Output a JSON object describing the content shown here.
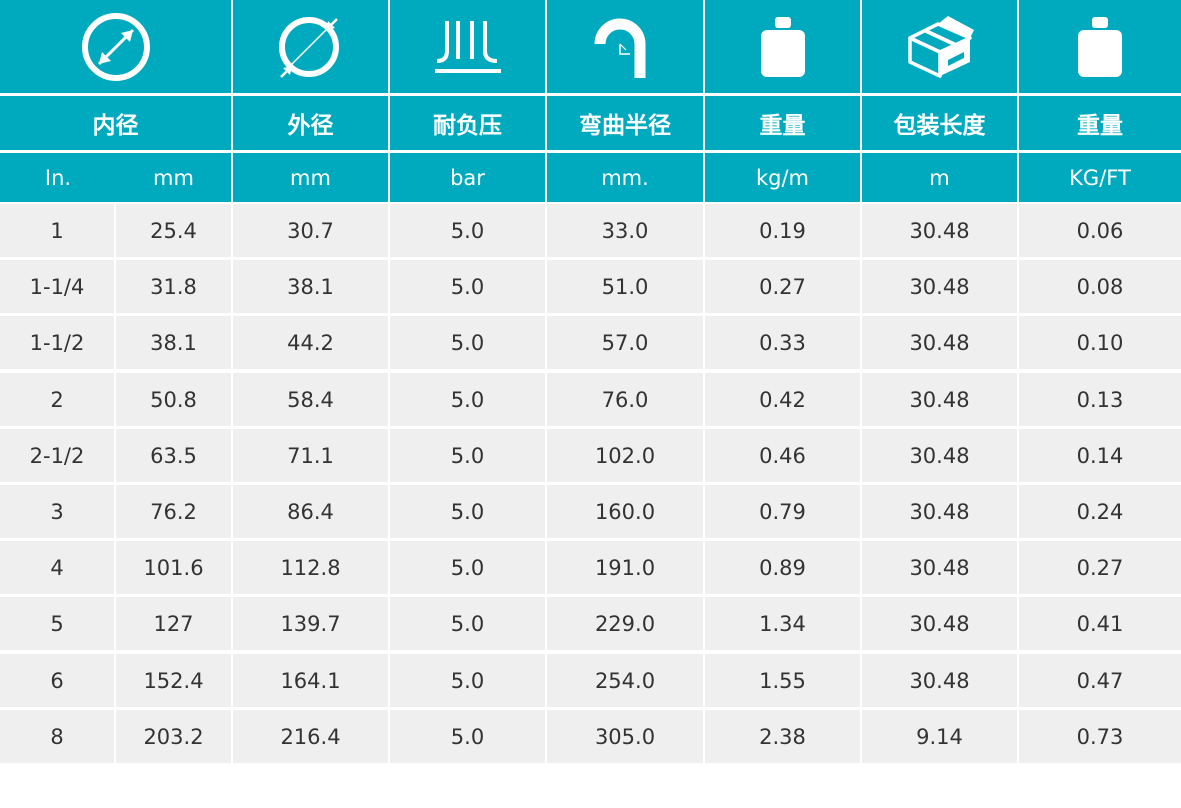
{
  "columns": [
    {
      "icon": "inner-diameter-icon",
      "title": "内径",
      "units": [
        "In.",
        "mm"
      ]
    },
    {
      "icon": "outer-diameter-icon",
      "title": "外径",
      "units": [
        "mm"
      ]
    },
    {
      "icon": "pressure-icon",
      "title": "耐负压",
      "units": [
        "bar"
      ]
    },
    {
      "icon": "bend-radius-icon",
      "title": "弯曲半径",
      "units": [
        "mm."
      ]
    },
    {
      "icon": "weight-icon",
      "title": "重量",
      "units": [
        "kg/m"
      ]
    },
    {
      "icon": "package-box-icon",
      "title": "包装长度",
      "units": [
        "m"
      ]
    },
    {
      "icon": "weight-icon",
      "title": "重量",
      "units": [
        "KG/FT"
      ]
    }
  ],
  "rows": [
    [
      "1",
      "25.4",
      "30.7",
      "5.0",
      "33.0",
      "0.19",
      "30.48",
      "0.06"
    ],
    [
      "1-1/4",
      "31.8",
      "38.1",
      "5.0",
      "51.0",
      "0.27",
      "30.48",
      "0.08"
    ],
    [
      "1-1/2",
      "38.1",
      "44.2",
      "5.0",
      "57.0",
      "0.33",
      "30.48",
      "0.10"
    ],
    [
      "2",
      "50.8",
      "58.4",
      "5.0",
      "76.0",
      "0.42",
      "30.48",
      "0.13"
    ],
    [
      "2-1/2",
      "63.5",
      "71.1",
      "5.0",
      "102.0",
      "0.46",
      "30.48",
      "0.14"
    ],
    [
      "3",
      "76.2",
      "86.4",
      "5.0",
      "160.0",
      "0.79",
      "30.48",
      "0.24"
    ],
    [
      "4",
      "101.6",
      "112.8",
      "5.0",
      "191.0",
      "0.89",
      "30.48",
      "0.27"
    ],
    [
      "5",
      "127",
      "139.7",
      "5.0",
      "229.0",
      "1.34",
      "30.48",
      "0.41"
    ],
    [
      "6",
      "152.4",
      "164.1",
      "5.0",
      "254.0",
      "1.55",
      "30.48",
      "0.47"
    ],
    [
      "8",
      "203.2",
      "216.4",
      "5.0",
      "305.0",
      "2.38",
      "9.14",
      "0.73"
    ]
  ]
}
